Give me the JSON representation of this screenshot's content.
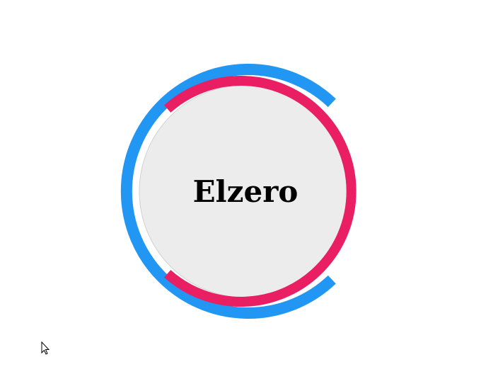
{
  "logo": {
    "text": "Elzero"
  },
  "colors": {
    "background": "#ffffff",
    "inner_circle": "#ececec",
    "inner_circle_border": "#d0d0d0",
    "outer_arc": "#2196f3",
    "inner_arc": "#e91e63",
    "text": "#000000"
  },
  "icons": {
    "cursor": "mouse-pointer-icon"
  }
}
